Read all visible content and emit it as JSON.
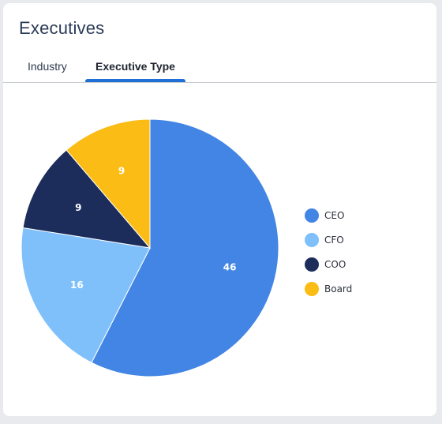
{
  "card": {
    "title": "Executives"
  },
  "tabs": [
    {
      "label": "Industry",
      "active": false
    },
    {
      "label": "Executive Type",
      "active": true
    }
  ],
  "colors": {
    "tab_accent": "#1f6fd6"
  },
  "chart_data": {
    "type": "pie",
    "slices": [
      {
        "label": "CEO",
        "value": 46,
        "color": "#4285e4"
      },
      {
        "label": "CFO",
        "value": 16,
        "color": "#7fc0fb"
      },
      {
        "label": "COO",
        "value": 9,
        "color": "#1c2d5b"
      },
      {
        "label": "Board",
        "value": 9,
        "color": "#fbbc16"
      }
    ],
    "start": "top, clockwise",
    "data_labels": true,
    "legend_position": "right"
  }
}
